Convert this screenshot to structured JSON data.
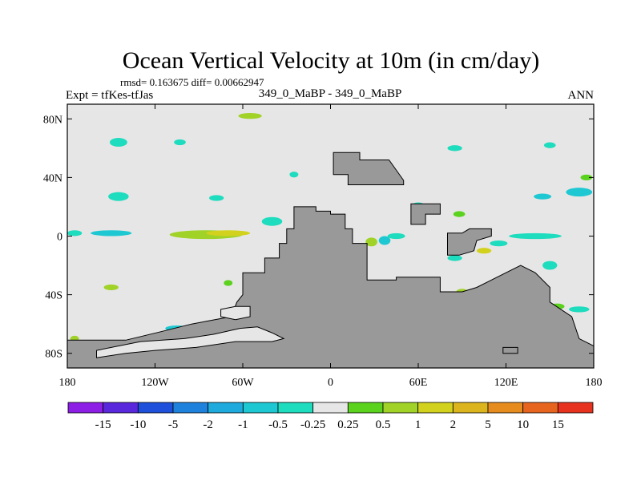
{
  "chart_data": {
    "type": "heatmap",
    "title": "Ocean Vertical Velocity at 10m (in cm/day)",
    "stats_line": "rmsd= 0.163675 diff= 0.00662947",
    "left_label": "Expt = tfKes-tfJas",
    "center_label": "349_0_MaBP - 349_0_MaBP",
    "right_label": "ANN",
    "x_range": [
      -180,
      180
    ],
    "y_range": [
      -90,
      90
    ],
    "x_ticks": [
      {
        "value": -180,
        "label": "180"
      },
      {
        "value": -120,
        "label": "120W"
      },
      {
        "value": -60,
        "label": "60W"
      },
      {
        "value": 0,
        "label": "0"
      },
      {
        "value": 60,
        "label": "60E"
      },
      {
        "value": 120,
        "label": "120E"
      },
      {
        "value": 180,
        "label": "180"
      }
    ],
    "y_ticks": [
      {
        "value": 80,
        "label": "80N"
      },
      {
        "value": 40,
        "label": "40N"
      },
      {
        "value": 0,
        "label": "0"
      },
      {
        "value": -40,
        "label": "40S"
      },
      {
        "value": -80,
        "label": "80S"
      }
    ],
    "background_color": "#e6e6e6",
    "land_color": "#999999",
    "colorbar": {
      "colors": [
        "#8c1ee6",
        "#5a28dc",
        "#1e50dc",
        "#1e82dc",
        "#1eaadc",
        "#1ec8d2",
        "#1edcbe",
        "#e6e6e6",
        "#5ad21e",
        "#a0d228",
        "#d2d21e",
        "#dcb41e",
        "#e68c1e",
        "#e6641e",
        "#e6321e"
      ],
      "labels": [
        "-15",
        "-10",
        "-5",
        "-2",
        "-1",
        "-0.5",
        "-0.25",
        "0.25",
        "0.5",
        "1",
        "2",
        "5",
        "10",
        "15"
      ]
    },
    "land_masses": [
      {
        "name": "americas-and-africa",
        "points": [
          [
            -180,
            -90
          ],
          [
            -180,
            -71
          ],
          [
            -140,
            -71
          ],
          [
            -115,
            -65
          ],
          [
            -95,
            -60
          ],
          [
            -68,
            -55
          ],
          [
            -64,
            -45
          ],
          [
            -60,
            -40
          ],
          [
            -60,
            -25
          ],
          [
            -45,
            -25
          ],
          [
            -45,
            -15
          ],
          [
            -35,
            -15
          ],
          [
            -35,
            -5
          ],
          [
            -30,
            -5
          ],
          [
            -30,
            5
          ],
          [
            -25,
            5
          ],
          [
            -25,
            20
          ],
          [
            -10,
            20
          ],
          [
            -10,
            17
          ],
          [
            0,
            17
          ],
          [
            0,
            15
          ],
          [
            10,
            15
          ],
          [
            10,
            5
          ],
          [
            15,
            5
          ],
          [
            15,
            -5
          ],
          [
            25,
            -5
          ],
          [
            25,
            -30
          ],
          [
            45,
            -30
          ],
          [
            45,
            -28
          ],
          [
            75,
            -28
          ],
          [
            75,
            -38
          ],
          [
            90,
            -38
          ],
          [
            100,
            -35
          ],
          [
            110,
            -30
          ],
          [
            130,
            -20
          ],
          [
            140,
            -25
          ],
          [
            150,
            -35
          ],
          [
            150,
            -45
          ],
          [
            165,
            -55
          ],
          [
            170,
            -70
          ],
          [
            180,
            -75
          ],
          [
            180,
            -90
          ]
        ]
      },
      {
        "name": "europe-asia",
        "points": [
          [
            2,
            57
          ],
          [
            2,
            42
          ],
          [
            12,
            42
          ],
          [
            12,
            35
          ],
          [
            50,
            35
          ],
          [
            50,
            38
          ],
          [
            40,
            52
          ],
          [
            20,
            52
          ],
          [
            20,
            57
          ]
        ]
      },
      {
        "name": "arabia-india",
        "points": [
          [
            55,
            22
          ],
          [
            55,
            8
          ],
          [
            65,
            8
          ],
          [
            65,
            15
          ],
          [
            75,
            15
          ],
          [
            75,
            22
          ]
        ]
      },
      {
        "name": "southeast-asia",
        "points": [
          [
            80,
            2
          ],
          [
            90,
            2
          ],
          [
            95,
            5
          ],
          [
            110,
            5
          ],
          [
            110,
            0
          ],
          [
            100,
            -3
          ],
          [
            98,
            -10
          ],
          [
            88,
            -13
          ],
          [
            80,
            -13
          ]
        ]
      },
      {
        "name": "gulf-island",
        "points": [
          [
            118,
            -80
          ],
          [
            128,
            -80
          ],
          [
            128,
            -76
          ],
          [
            118,
            -76
          ]
        ]
      }
    ],
    "inner_seas": [
      {
        "name": "weddell-arm",
        "points": [
          [
            -160,
            -83
          ],
          [
            -140,
            -80
          ],
          [
            -120,
            -78
          ],
          [
            -92,
            -76
          ],
          [
            -65,
            -72
          ],
          [
            -40,
            -72
          ],
          [
            -32,
            -70
          ],
          [
            -40,
            -66
          ],
          [
            -50,
            -62
          ],
          [
            -62,
            -63
          ],
          [
            -80,
            -67
          ],
          [
            -100,
            -70
          ],
          [
            -130,
            -72
          ],
          [
            -160,
            -78
          ]
        ]
      },
      {
        "name": "south-pocket",
        "points": [
          [
            -75,
            -50
          ],
          [
            -65,
            -48
          ],
          [
            -55,
            -48
          ],
          [
            -55,
            -55
          ],
          [
            -65,
            -57
          ],
          [
            -75,
            -55
          ]
        ]
      }
    ],
    "anomaly_patches": [
      {
        "lon": -145,
        "lat": 64,
        "rx": 6,
        "ry": 3,
        "color": "#1edcbe"
      },
      {
        "lon": -103,
        "lat": 64,
        "rx": 4,
        "ry": 2,
        "color": "#1edcbe"
      },
      {
        "lon": -55,
        "lat": 82,
        "rx": 8,
        "ry": 2,
        "color": "#a0d228"
      },
      {
        "lon": -25,
        "lat": 42,
        "rx": 3,
        "ry": 2,
        "color": "#1edcbe"
      },
      {
        "lon": -145,
        "lat": 27,
        "rx": 7,
        "ry": 3,
        "color": "#1edcbe"
      },
      {
        "lon": -78,
        "lat": 26,
        "rx": 5,
        "ry": 2,
        "color": "#1edcbe"
      },
      {
        "lon": -150,
        "lat": 2,
        "rx": 14,
        "ry": 2,
        "color": "#1ec8d2"
      },
      {
        "lon": -85,
        "lat": 1,
        "rx": 25,
        "ry": 3,
        "color": "#a0d228"
      },
      {
        "lon": -70,
        "lat": 2,
        "rx": 15,
        "ry": 2,
        "color": "#d2d21e"
      },
      {
        "lon": -40,
        "lat": 10,
        "rx": 7,
        "ry": 3,
        "color": "#1edcbe"
      },
      {
        "lon": -15,
        "lat": 2,
        "rx": 5,
        "ry": 2,
        "color": "#1ec8d2"
      },
      {
        "lon": -70,
        "lat": -32,
        "rx": 3,
        "ry": 2,
        "color": "#5ad21e"
      },
      {
        "lon": -150,
        "lat": -35,
        "rx": 5,
        "ry": 2,
        "color": "#a0d228"
      },
      {
        "lon": -175,
        "lat": 2,
        "rx": 5,
        "ry": 2,
        "color": "#1edcbe"
      },
      {
        "lon": 28,
        "lat": -4,
        "rx": 4,
        "ry": 3,
        "color": "#a0d228"
      },
      {
        "lon": 37,
        "lat": -3,
        "rx": 4,
        "ry": 3,
        "color": "#1ec8d2"
      },
      {
        "lon": 45,
        "lat": 0,
        "rx": 6,
        "ry": 2,
        "color": "#1edcbe"
      },
      {
        "lon": 95,
        "lat": 0,
        "rx": 7,
        "ry": 3,
        "color": "#a0d228"
      },
      {
        "lon": 115,
        "lat": -5,
        "rx": 6,
        "ry": 2,
        "color": "#1edcbe"
      },
      {
        "lon": 140,
        "lat": 0,
        "rx": 18,
        "ry": 2,
        "color": "#1edcbe"
      },
      {
        "lon": 105,
        "lat": -10,
        "rx": 5,
        "ry": 2,
        "color": "#d2d21e"
      },
      {
        "lon": 85,
        "lat": -15,
        "rx": 5,
        "ry": 2,
        "color": "#1edcbe"
      },
      {
        "lon": 150,
        "lat": -20,
        "rx": 5,
        "ry": 3,
        "color": "#1edcbe"
      },
      {
        "lon": 125,
        "lat": -28,
        "rx": 6,
        "ry": 3,
        "color": "#1edcbe"
      },
      {
        "lon": 65,
        "lat": -38,
        "rx": 5,
        "ry": 2,
        "color": "#a0d228"
      },
      {
        "lon": 90,
        "lat": -38,
        "rx": 4,
        "ry": 2,
        "color": "#a0d228"
      },
      {
        "lon": 155,
        "lat": -48,
        "rx": 5,
        "ry": 2,
        "color": "#5ad21e"
      },
      {
        "lon": 170,
        "lat": -50,
        "rx": 7,
        "ry": 2,
        "color": "#1edcbe"
      },
      {
        "lon": 60,
        "lat": 20,
        "rx": 5,
        "ry": 3,
        "color": "#1edcbe"
      },
      {
        "lon": 88,
        "lat": 15,
        "rx": 4,
        "ry": 2,
        "color": "#5ad21e"
      },
      {
        "lon": 170,
        "lat": 30,
        "rx": 9,
        "ry": 3,
        "color": "#1ec8d2"
      },
      {
        "lon": 145,
        "lat": 27,
        "rx": 6,
        "ry": 2,
        "color": "#1ec8d2"
      },
      {
        "lon": 175,
        "lat": 40,
        "rx": 4,
        "ry": 2,
        "color": "#5ad21e"
      },
      {
        "lon": 85,
        "lat": 60,
        "rx": 5,
        "ry": 2,
        "color": "#1edcbe"
      },
      {
        "lon": 150,
        "lat": 62,
        "rx": 4,
        "ry": 2,
        "color": "#1edcbe"
      },
      {
        "lon": -175,
        "lat": -70,
        "rx": 3,
        "ry": 2,
        "color": "#a0d228"
      },
      {
        "lon": -105,
        "lat": -63,
        "rx": 8,
        "ry": 2,
        "color": "#1ec8d2"
      },
      {
        "lon": -90,
        "lat": -62,
        "rx": 4,
        "ry": 2,
        "color": "#a0d228"
      },
      {
        "lon": -50,
        "lat": -55,
        "rx": 3,
        "ry": 2,
        "color": "#1edcbe"
      },
      {
        "lon": -40,
        "lat": -60,
        "rx": 4,
        "ry": 2,
        "color": "#a0d228"
      },
      {
        "lon": 135,
        "lat": -77,
        "rx": 4,
        "ry": 1.5,
        "color": "#1edcbe"
      },
      {
        "lon": 165,
        "lat": -75,
        "rx": 5,
        "ry": 2,
        "color": "#5ad21e"
      }
    ]
  }
}
